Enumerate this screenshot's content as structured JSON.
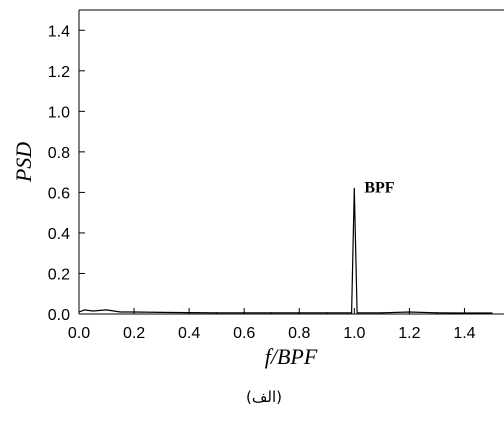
{
  "chart_data": {
    "type": "line",
    "title": "",
    "xlabel": "f/BPF",
    "ylabel": "PSD",
    "xlim": [
      0.0,
      1.5
    ],
    "ylim": [
      0.0,
      1.5
    ],
    "x_ticks": [
      "0.0",
      "0.2",
      "0.4",
      "0.6",
      "0.8",
      "1.0",
      "1.2",
      "1.4"
    ],
    "y_ticks": [
      "0.0",
      "0.2",
      "0.4",
      "0.6",
      "0.8",
      "1.0",
      "1.2",
      "1.4"
    ],
    "grid": false,
    "legend": "none",
    "line_color": "#000000",
    "series": [
      {
        "x": [
          0.0,
          0.02,
          0.05,
          0.1,
          0.15,
          0.2,
          0.3,
          0.4,
          0.5,
          0.6,
          0.7,
          0.8,
          0.9,
          0.99,
          1.0,
          1.01,
          1.1,
          1.2,
          1.3,
          1.4,
          1.5
        ],
        "values": [
          0.01,
          0.02,
          0.015,
          0.02,
          0.01,
          0.01,
          0.008,
          0.007,
          0.006,
          0.006,
          0.006,
          0.006,
          0.006,
          0.006,
          0.62,
          0.006,
          0.006,
          0.01,
          0.006,
          0.005,
          0.005
        ]
      }
    ],
    "annotations": [
      {
        "text": "BPF",
        "x": 1.0,
        "y": 0.62
      }
    ],
    "caption": "(الف)"
  }
}
